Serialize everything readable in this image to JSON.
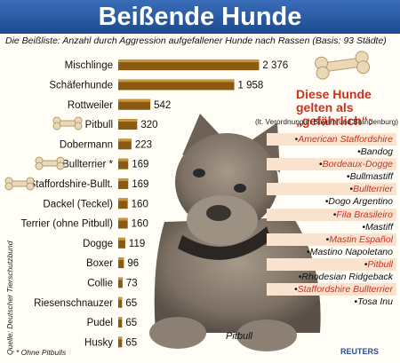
{
  "header": {
    "title": "Beißende Hunde",
    "subtitle": "Die Beißliste: Anzahl durch Aggression aufgefallener Hunde nach Rassen (Basis: 93 Städte)"
  },
  "chart_data": {
    "type": "bar",
    "orientation": "horizontal",
    "title": "Beißende Hunde",
    "subtitle": "Die Beißliste: Anzahl durch Aggression aufgefallener Hunde nach Rassen (Basis: 93 Städte)",
    "categories": [
      "Mischlinge",
      "Schäferhunde",
      "Rottweiler",
      "Pitbull",
      "Dobermann",
      "Bullterrier *",
      "Staffordshire-Bullt.",
      "Dackel (Teckel)",
      "Terrier (ohne Pitbull)",
      "Dogge",
      "Boxer",
      "Collie",
      "Riesenschnauzer",
      "Pudel",
      "Husky"
    ],
    "values": [
      2376,
      1958,
      542,
      320,
      223,
      169,
      169,
      160,
      160,
      119,
      96,
      73,
      65,
      65,
      65
    ],
    "value_labels": [
      "2 376",
      "1 958",
      "542",
      "320",
      "223",
      "169",
      "169",
      "160",
      "160",
      "119",
      "96",
      "73",
      "65",
      "65",
      "65"
    ],
    "xlim": [
      0,
      2400
    ],
    "grid": false,
    "bar_color": "#8a5a12"
  },
  "list_panel": {
    "title": "Diese Hunde gelten als „gefährlich“:",
    "note": "(lt. Verordnung in Bayern und Brandenburg)",
    "breeds": [
      "American Staffordshire",
      "Bandog",
      "Bordeaux-Dogge",
      "Bullmastiff",
      "Bullterrier",
      "Dogo Argentino",
      "Fila Brasileiro",
      "Mastiff",
      "Mastin Español",
      "Mastino Napoletano",
      "Pitbull",
      "Rhodesian Ridgeback",
      "Staffordshire Bullterrier",
      "Tosa Inu"
    ]
  },
  "illustration": {
    "dog_caption": "Pitbull",
    "bone_icons": [
      "bone-icon",
      "bone-icon",
      "bone-icon",
      "bone-icon"
    ]
  },
  "footer": {
    "source": "Quelle: Deutscher Tierschutzbund",
    "footnote": "* Ohne Pitbulls",
    "credit": "REUTERS"
  },
  "colors": {
    "title_bar": "#1d4a8f",
    "highlight_text": "#c8331f",
    "bar": "#8a5a12"
  }
}
